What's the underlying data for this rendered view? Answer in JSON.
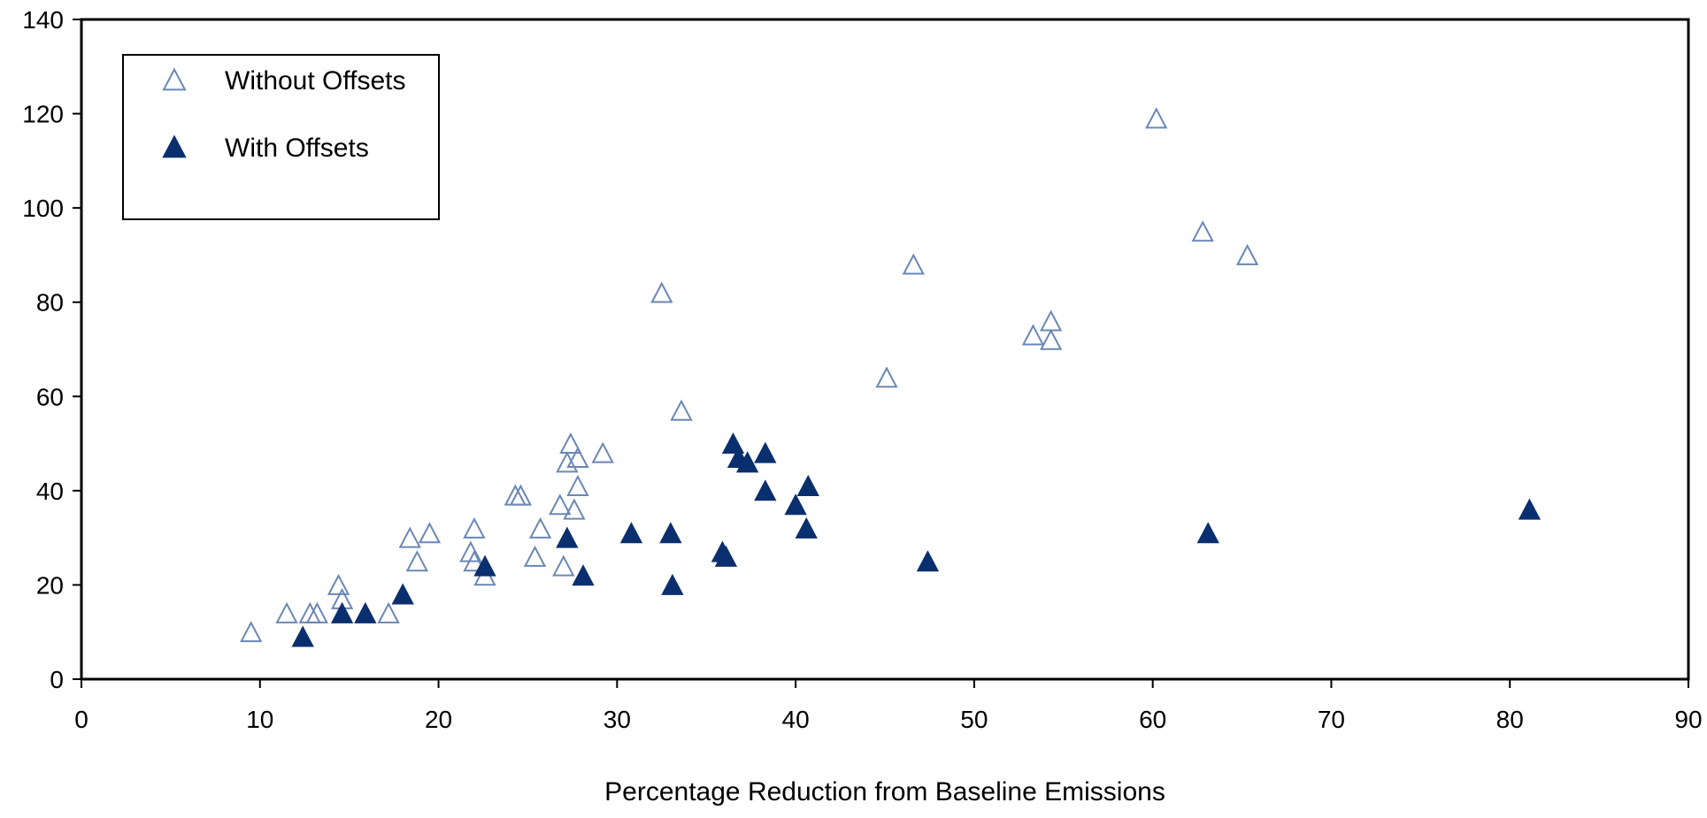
{
  "chart_data": {
    "type": "scatter",
    "title": "",
    "xlabel": "Percentage Reduction from Baseline Emissions",
    "ylabel": "",
    "xlim": [
      0,
      90
    ],
    "ylim": [
      0,
      140
    ],
    "x_ticks": [
      0,
      10,
      20,
      30,
      40,
      50,
      60,
      70,
      80,
      90
    ],
    "y_ticks": [
      0,
      20,
      40,
      60,
      80,
      100,
      120,
      140
    ],
    "grid": false,
    "legend_position": "top-left",
    "series": [
      {
        "name": "Without Offsets",
        "marker": "hollow-triangle",
        "color": "#6a87b5",
        "points": [
          [
            9.5,
            10
          ],
          [
            11.5,
            14
          ],
          [
            12.8,
            14
          ],
          [
            13.2,
            14
          ],
          [
            14.4,
            20
          ],
          [
            14.6,
            17
          ],
          [
            17.2,
            14
          ],
          [
            18.4,
            30
          ],
          [
            18.8,
            25
          ],
          [
            19.5,
            31
          ],
          [
            21.8,
            27
          ],
          [
            22.0,
            32
          ],
          [
            22.0,
            25
          ],
          [
            22.6,
            22
          ],
          [
            24.3,
            39
          ],
          [
            24.6,
            39
          ],
          [
            25.4,
            26
          ],
          [
            25.7,
            32
          ],
          [
            26.8,
            37
          ],
          [
            27.0,
            24
          ],
          [
            27.2,
            46
          ],
          [
            27.4,
            50
          ],
          [
            27.6,
            36
          ],
          [
            27.8,
            47
          ],
          [
            27.8,
            41
          ],
          [
            29.2,
            48
          ],
          [
            32.5,
            82
          ],
          [
            33.6,
            57
          ],
          [
            45.1,
            64
          ],
          [
            46.6,
            88
          ],
          [
            53.3,
            73
          ],
          [
            54.3,
            76
          ],
          [
            54.3,
            72
          ],
          [
            60.2,
            119
          ],
          [
            62.8,
            95
          ],
          [
            65.3,
            90
          ]
        ]
      },
      {
        "name": "With Offsets",
        "marker": "filled-triangle",
        "color": "#0a2f6e",
        "points": [
          [
            12.4,
            9
          ],
          [
            14.6,
            14
          ],
          [
            15.9,
            14
          ],
          [
            18.0,
            18
          ],
          [
            22.6,
            24
          ],
          [
            27.2,
            30
          ],
          [
            28.1,
            22
          ],
          [
            30.8,
            31
          ],
          [
            33.0,
            31
          ],
          [
            33.1,
            20
          ],
          [
            35.9,
            27
          ],
          [
            36.1,
            26
          ],
          [
            36.5,
            50
          ],
          [
            36.8,
            47
          ],
          [
            37.3,
            46
          ],
          [
            38.3,
            48
          ],
          [
            38.3,
            40
          ],
          [
            40.0,
            37
          ],
          [
            40.6,
            32
          ],
          [
            40.7,
            41
          ],
          [
            47.4,
            25
          ],
          [
            63.1,
            31
          ],
          [
            81.1,
            36
          ]
        ]
      }
    ]
  }
}
